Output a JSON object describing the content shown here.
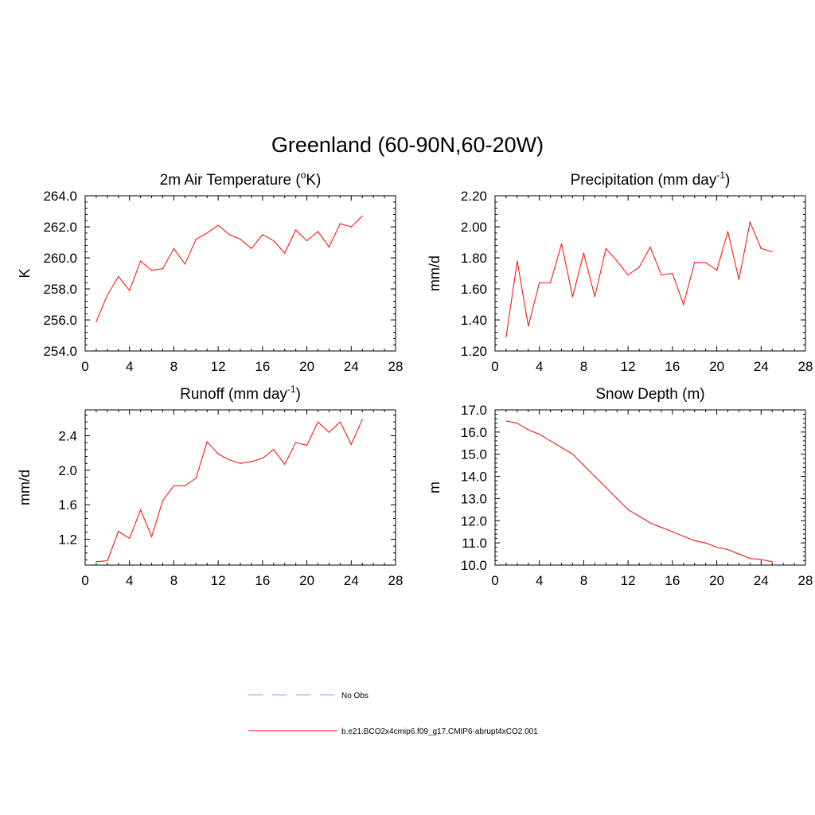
{
  "figure": {
    "title": "Greenland (60-90N,60-20W)"
  },
  "legend": {
    "entries": [
      {
        "label": "No Obs",
        "color": "#9999ff",
        "dashed": true
      },
      {
        "label": "b.e21.BCO2x4cmip6.f09_g17.CMIP6-abrupt4xCO2.001",
        "color": "#ff0000",
        "dashed": false
      }
    ]
  },
  "chart_data": [
    {
      "type": "line",
      "title_main": "2m Air Temperature (",
      "title_sup": "o",
      "title_end": "K)",
      "ylabel": "K",
      "xlim": [
        0,
        28
      ],
      "ylim": [
        254,
        264
      ],
      "xticks": [
        0,
        4,
        8,
        12,
        16,
        20,
        24,
        28
      ],
      "yticks": [
        254,
        256,
        258,
        260,
        262,
        264
      ],
      "ytick_labels": [
        "254.0",
        "256.0",
        "258.0",
        "260.0",
        "262.0",
        "264.0"
      ],
      "series": [
        {
          "color": "#ff0000",
          "x": [
            1,
            2,
            3,
            4,
            5,
            6,
            7,
            8,
            9,
            10,
            11,
            12,
            13,
            14,
            15,
            16,
            17,
            18,
            19,
            20,
            21,
            22,
            23,
            24,
            25
          ],
          "y": [
            255.9,
            257.6,
            258.8,
            257.9,
            259.8,
            259.2,
            259.3,
            260.6,
            259.6,
            261.2,
            261.6,
            262.1,
            261.5,
            261.2,
            260.6,
            261.5,
            261.1,
            260.3,
            261.8,
            261.1,
            261.7,
            260.7,
            262.2,
            262.0,
            262.7
          ]
        }
      ]
    },
    {
      "type": "line",
      "title_main": "Precipitation (mm day",
      "title_sup": "-1",
      "title_end": ")",
      "ylabel": "mm/d",
      "xlim": [
        0,
        28
      ],
      "ylim": [
        1.2,
        2.2
      ],
      "xticks": [
        0,
        4,
        8,
        12,
        16,
        20,
        24,
        28
      ],
      "yticks": [
        1.2,
        1.4,
        1.6,
        1.8,
        2.0,
        2.2
      ],
      "ytick_labels": [
        "1.20",
        "1.40",
        "1.60",
        "1.80",
        "2.00",
        "2.20"
      ],
      "series": [
        {
          "color": "#ff0000",
          "x": [
            1,
            2,
            3,
            4,
            5,
            6,
            7,
            8,
            9,
            10,
            11,
            12,
            13,
            14,
            15,
            16,
            17,
            18,
            19,
            20,
            21,
            22,
            23,
            24,
            25
          ],
          "y": [
            1.29,
            1.78,
            1.36,
            1.64,
            1.64,
            1.89,
            1.55,
            1.83,
            1.55,
            1.86,
            1.78,
            1.69,
            1.74,
            1.87,
            1.69,
            1.7,
            1.5,
            1.77,
            1.77,
            1.72,
            1.97,
            1.66,
            2.03,
            1.86,
            1.84
          ]
        }
      ]
    },
    {
      "type": "line",
      "title_main": "Runoff (mm day",
      "title_sup": "-1",
      "title_end": ")",
      "ylabel": "mm/d",
      "xlim": [
        0,
        28
      ],
      "ylim": [
        0.9,
        2.7
      ],
      "xticks": [
        0,
        4,
        8,
        12,
        16,
        20,
        24,
        28
      ],
      "yticks": [
        1.2,
        1.6,
        2.0,
        2.4
      ],
      "ytick_labels": [
        "1.2",
        "1.6",
        "2.0",
        "2.4"
      ],
      "series": [
        {
          "color": "#ff0000",
          "x": [
            1,
            2,
            3,
            4,
            5,
            6,
            7,
            8,
            9,
            10,
            11,
            12,
            13,
            14,
            15,
            16,
            17,
            18,
            19,
            20,
            21,
            22,
            23,
            24,
            25
          ],
          "y": [
            0.94,
            0.95,
            1.29,
            1.21,
            1.54,
            1.23,
            1.65,
            1.82,
            1.82,
            1.91,
            2.33,
            2.19,
            2.12,
            2.08,
            2.1,
            2.14,
            2.24,
            2.07,
            2.32,
            2.29,
            2.56,
            2.44,
            2.56,
            2.3,
            2.59
          ]
        }
      ]
    },
    {
      "type": "line",
      "title_main": "Snow Depth (m)",
      "title_sup": "",
      "title_end": "",
      "ylabel": "m",
      "xlim": [
        0,
        28
      ],
      "ylim": [
        10,
        17
      ],
      "xticks": [
        0,
        4,
        8,
        12,
        16,
        20,
        24,
        28
      ],
      "yticks": [
        10,
        11,
        12,
        13,
        14,
        15,
        16,
        17
      ],
      "ytick_labels": [
        "10.0",
        "11.0",
        "12.0",
        "13.0",
        "14.0",
        "15.0",
        "16.0",
        "17.0"
      ],
      "series": [
        {
          "color": "#ff0000",
          "x": [
            1,
            2,
            3,
            4,
            5,
            6,
            7,
            8,
            9,
            10,
            11,
            12,
            13,
            14,
            15,
            16,
            17,
            18,
            19,
            20,
            21,
            22,
            23,
            24,
            25
          ],
          "y": [
            16.5,
            16.4,
            16.1,
            15.9,
            15.6,
            15.3,
            15.0,
            14.5,
            14.0,
            13.5,
            13.0,
            12.5,
            12.2,
            11.9,
            11.7,
            11.5,
            11.3,
            11.1,
            11.0,
            10.8,
            10.7,
            10.5,
            10.3,
            10.25,
            10.15
          ]
        }
      ]
    }
  ]
}
